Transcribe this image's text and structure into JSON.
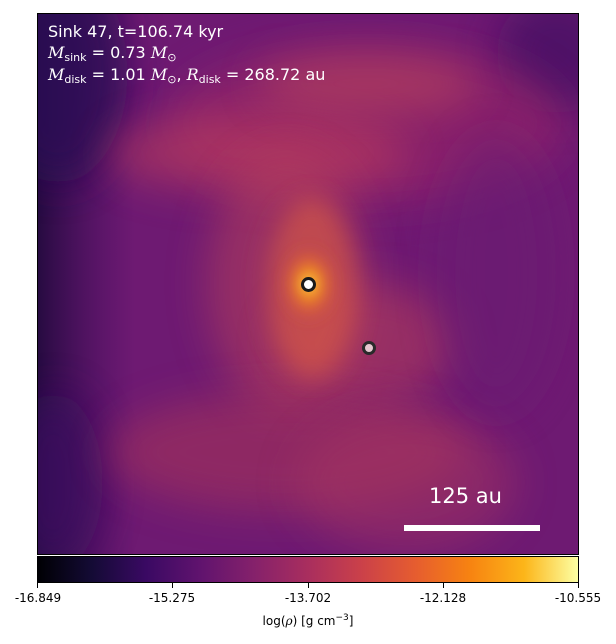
{
  "info": {
    "line1": "Sink 47, t=106.74 kyr",
    "sink_mass": "0.73",
    "disk_mass": "1.01",
    "disk_radius": "268.72",
    "unit_au": "au",
    "msun_symbol": "⊙"
  },
  "scale_bar": {
    "label": "125 au"
  },
  "colorbar": {
    "ticks": [
      "-16.849",
      "-15.275",
      "-13.702",
      "-12.128",
      "-10.555"
    ],
    "label_prefix": "log(",
    "label_rho": "ρ",
    "label_mid": ") [g cm",
    "label_exp": "−3",
    "label_end": "]"
  },
  "colors": {
    "background": "#6e1a72",
    "sink_primary_fill": "#ffffff",
    "sink_secondary_fill": "#e7c8d0",
    "sink_outline": "#1a1a1a"
  }
}
